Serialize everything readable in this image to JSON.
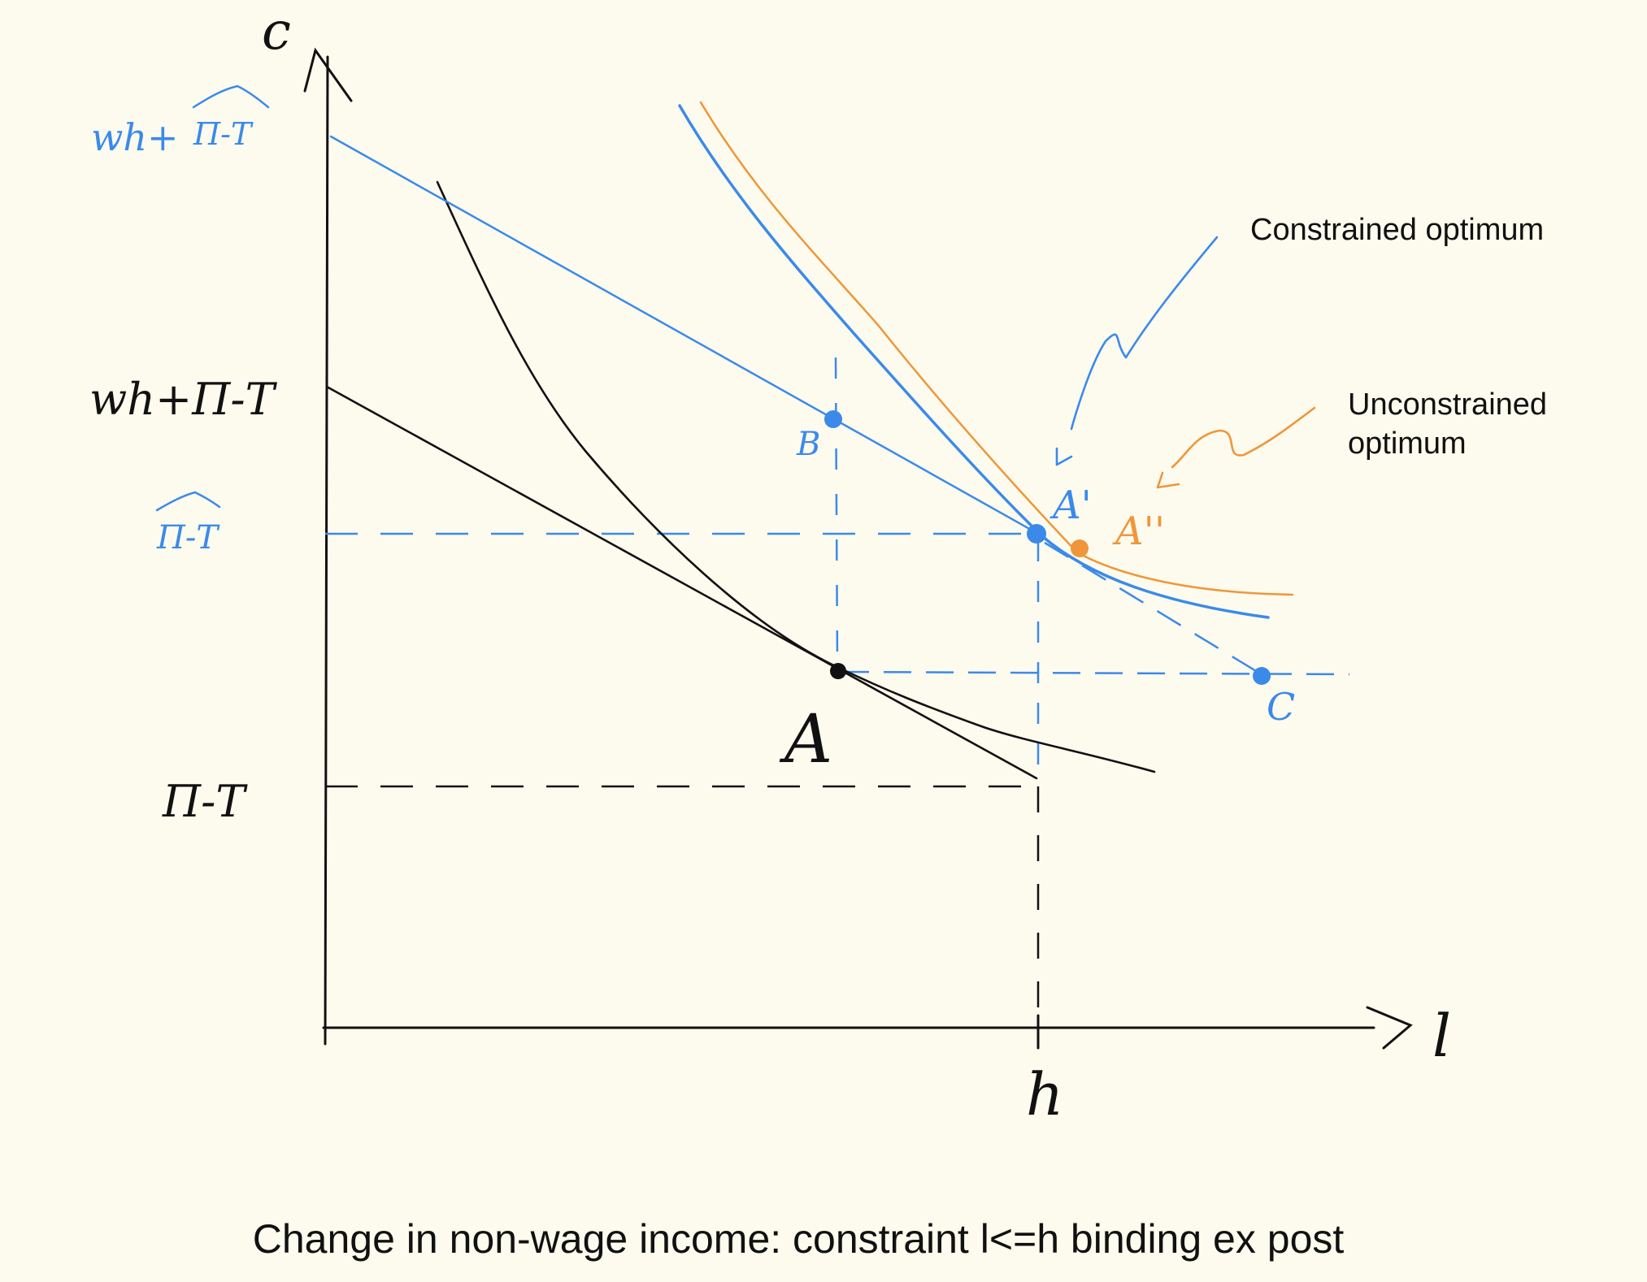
{
  "caption": "Change in non-wage income: constraint l<=h binding ex post",
  "axes": {
    "y_label": "c",
    "x_label": "l",
    "x_tick_h": "h"
  },
  "y_ticks": {
    "wh_pi_t_hat": "wh+",
    "pi_t_hat_top": "Π-T",
    "wh_pi_t": "wh+Π-T",
    "pi_t_hat": "Π-T",
    "pi_t": "Π-T"
  },
  "points": {
    "A": "A",
    "B": "B",
    "C": "C",
    "A_prime": "A'",
    "A_double": "A''"
  },
  "annotations": {
    "constrained": "Constrained optimum",
    "unconstrained_1": "Unconstrained",
    "unconstrained_2": "optimum"
  },
  "colors": {
    "background": "#fdfbee",
    "ink": "#111111",
    "blue": "#3b8aea",
    "orange": "#f0963a"
  }
}
